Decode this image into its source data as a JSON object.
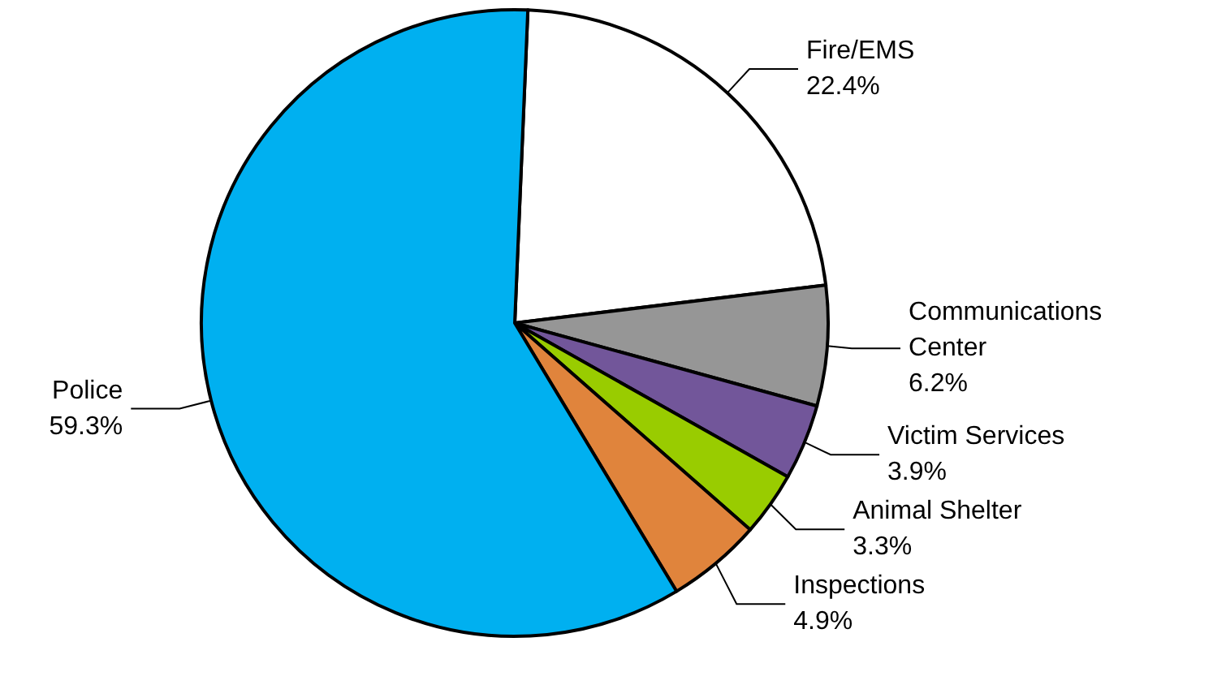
{
  "chart_data": {
    "type": "pie",
    "categories": [
      "Fire/EMS",
      "Communications Center",
      "Victim Services",
      "Animal Shelter",
      "Inspections",
      "Police"
    ],
    "values": [
      22.4,
      6.2,
      3.9,
      3.3,
      4.9,
      59.3
    ],
    "colors": [
      "#ffffff",
      "#969696",
      "#72569a",
      "#99cc00",
      "#e0843c",
      "#00b0f0"
    ],
    "value_labels": [
      "22.4%",
      "6.2%",
      "3.9%",
      "3.3%",
      "4.9%",
      "59.3%"
    ],
    "legend": false
  }
}
